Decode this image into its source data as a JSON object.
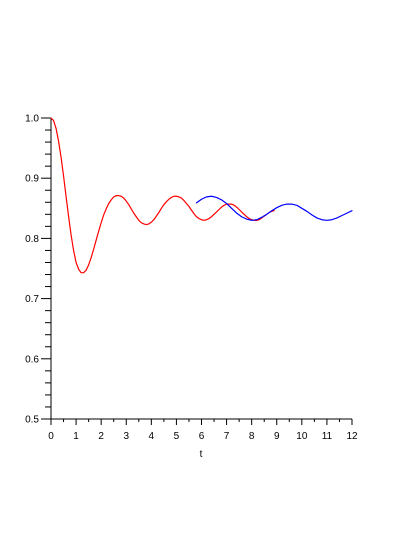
{
  "chart_data": {
    "type": "line",
    "title": "",
    "xlabel": "t",
    "ylabel": "",
    "xlim": [
      0,
      12
    ],
    "ylim": [
      0.5,
      1.0
    ],
    "x_ticks": [
      "0",
      "1",
      "2",
      "3",
      "4",
      "5",
      "6",
      "7",
      "8",
      "9",
      "10",
      "11",
      "12"
    ],
    "y_ticks": [
      "0.5",
      "0.6",
      "0.7",
      "0.8",
      "0.9",
      "1.0"
    ],
    "grid": false,
    "series": [
      {
        "color": "#ff0000",
        "x": [
          0.0,
          0.1,
          0.2,
          0.3,
          0.4,
          0.5,
          0.6,
          0.7,
          0.8,
          0.9,
          1.0,
          1.1,
          1.2,
          1.3,
          1.4,
          1.5,
          1.6,
          1.7,
          1.8,
          1.9,
          2.0,
          2.1,
          2.2,
          2.3,
          2.4,
          2.5,
          2.6,
          2.7,
          2.8,
          2.9,
          3.0,
          3.1,
          3.2,
          3.3,
          3.4,
          3.5,
          3.6,
          3.7,
          3.8,
          3.9,
          4.0,
          4.1,
          4.2,
          4.3,
          4.4,
          4.5,
          4.6,
          4.7,
          4.8,
          4.9,
          5.0,
          5.1,
          5.2,
          5.3,
          5.4,
          5.5,
          5.6,
          5.7,
          5.8,
          5.9,
          6.0,
          6.1,
          6.2,
          6.3,
          6.4,
          6.5,
          6.6,
          6.7,
          6.8,
          6.9,
          7.0,
          7.1,
          7.2,
          7.3,
          7.4,
          7.5,
          7.6,
          7.7,
          7.8,
          7.9,
          8.0,
          8.1,
          8.2,
          8.3,
          8.4,
          8.5,
          8.6,
          8.7,
          8.8,
          8.9
        ],
        "y": [
          1.0,
          0.996,
          0.983,
          0.962,
          0.935,
          0.904,
          0.87,
          0.837,
          0.806,
          0.78,
          0.76,
          0.749,
          0.743,
          0.743,
          0.747,
          0.756,
          0.768,
          0.782,
          0.797,
          0.812,
          0.826,
          0.839,
          0.849,
          0.858,
          0.864,
          0.869,
          0.871,
          0.871,
          0.87,
          0.867,
          0.862,
          0.856,
          0.849,
          0.842,
          0.836,
          0.83,
          0.826,
          0.824,
          0.823,
          0.824,
          0.827,
          0.831,
          0.837,
          0.843,
          0.85,
          0.856,
          0.861,
          0.865,
          0.868,
          0.87,
          0.87,
          0.869,
          0.867,
          0.863,
          0.858,
          0.853,
          0.847,
          0.841,
          0.836,
          0.833,
          0.831,
          0.83,
          0.831,
          0.833,
          0.836,
          0.84,
          0.844,
          0.848,
          0.852,
          0.855,
          0.857,
          0.857,
          0.857,
          0.855,
          0.852,
          0.848,
          0.844,
          0.84,
          0.836,
          0.833,
          0.831,
          0.83,
          0.83,
          0.831,
          0.834,
          0.837,
          0.84,
          0.843,
          0.845,
          0.846
        ]
      },
      {
        "color": "#0000ff",
        "x": [
          5.8,
          6.0,
          6.2,
          6.4,
          6.6,
          6.8,
          7.0,
          7.2,
          7.4,
          7.6,
          7.8,
          8.0,
          8.2,
          8.4,
          8.6,
          8.8,
          9.0,
          9.2,
          9.4,
          9.6,
          9.8,
          10.0,
          10.2,
          10.4,
          10.6,
          10.8,
          11.0,
          11.2,
          11.4,
          11.6,
          11.8,
          12.0
        ],
        "y": [
          0.859,
          0.865,
          0.869,
          0.87,
          0.868,
          0.864,
          0.858,
          0.85,
          0.842,
          0.836,
          0.832,
          0.83,
          0.831,
          0.835,
          0.84,
          0.846,
          0.851,
          0.855,
          0.857,
          0.857,
          0.855,
          0.85,
          0.845,
          0.839,
          0.834,
          0.831,
          0.83,
          0.831,
          0.834,
          0.838,
          0.842,
          0.846
        ]
      }
    ]
  }
}
